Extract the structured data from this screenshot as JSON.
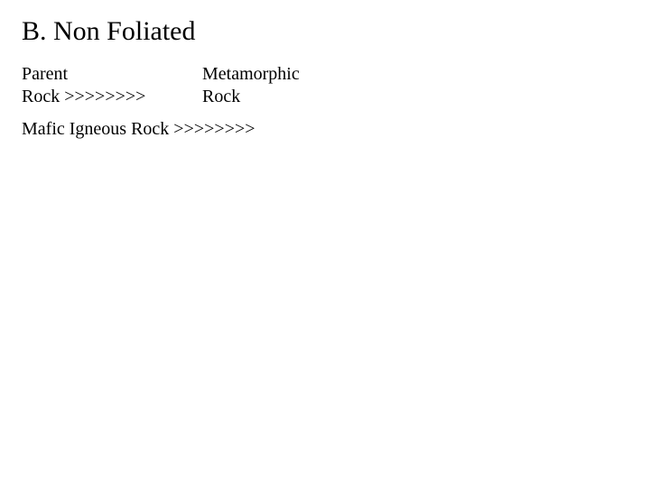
{
  "heading": "B.   Non Foliated",
  "subheading": {
    "line1_col1": "Parent",
    "line1_col2": "Metamorphic",
    "line2_col1": "Rock >>>>>>>>",
    "line2_col2": "Rock"
  },
  "item": "Mafic Igneous Rock >>>>>>>>",
  "colors": {
    "background": "#ffffff",
    "text": "#000000"
  },
  "fonts": {
    "heading_size": 30,
    "body_size": 20,
    "family": "Times New Roman"
  }
}
